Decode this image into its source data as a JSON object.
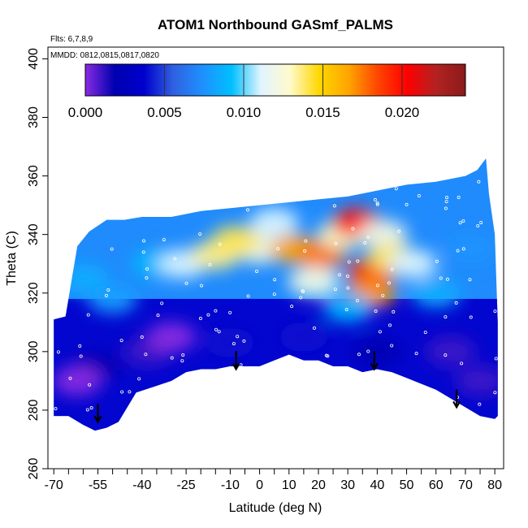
{
  "chart_data": {
    "type": "heatmap",
    "title": "ATOM1 Northbound GASmf_PALMS",
    "annotations": {
      "flights": "Flts: 6,7,8,9",
      "dates": "MMDD: 0812,0815,0817,0820"
    },
    "xlabel": "Latitude (deg N)",
    "ylabel": "Theta (C)",
    "xlim": [
      -72,
      83
    ],
    "ylim": [
      260,
      404
    ],
    "x_ticks_major": [
      -70,
      -55,
      -40,
      -25,
      -10,
      0,
      10,
      20,
      30,
      40,
      50,
      60,
      70,
      80
    ],
    "x_tick_labels": [
      "-70",
      "-55",
      "-40",
      "-25",
      "-10",
      "0",
      "10",
      "20",
      "30",
      "40",
      "50",
      "60",
      "70",
      "80"
    ],
    "x_ticks_minor": [
      -65,
      -60,
      -50,
      -45,
      -35,
      -30,
      -20,
      -15,
      -5,
      5,
      15,
      25,
      35,
      45,
      55,
      65,
      75
    ],
    "y_ticks": [
      260,
      280,
      300,
      320,
      340,
      360,
      380,
      400
    ],
    "y_tick_labels": [
      "260",
      "280",
      "300",
      "320",
      "340",
      "360",
      "380",
      "400"
    ],
    "colorbar": {
      "range": [
        0,
        0.024
      ],
      "ticks": [
        0,
        0.005,
        0.01,
        0.015,
        0.02
      ],
      "tick_labels": [
        "0.000",
        "0.005",
        "0.010",
        "0.015",
        "0.020"
      ],
      "colors": [
        "#8a2be2",
        "#0000b0",
        "#0000cd",
        "#3060e0",
        "#1e90ff",
        "#00bfff",
        "#e0f4ff",
        "#fffacd",
        "#ffd700",
        "#ffa500",
        "#ff4500",
        "#ff0000",
        "#b22222",
        "#8b1a1a"
      ]
    },
    "lower_boundary_theta": [
      [
        -70,
        278
      ],
      [
        -65,
        278
      ],
      [
        -60,
        275
      ],
      [
        -56,
        273
      ],
      [
        -52,
        274
      ],
      [
        -48,
        276
      ],
      [
        -42,
        286
      ],
      [
        -36,
        288
      ],
      [
        -30,
        290
      ],
      [
        -25,
        293
      ],
      [
        -20,
        294
      ],
      [
        -15,
        294
      ],
      [
        -10,
        295
      ],
      [
        -5,
        295
      ],
      [
        0,
        295
      ],
      [
        5,
        297
      ],
      [
        10,
        299
      ],
      [
        15,
        297
      ],
      [
        20,
        297
      ],
      [
        25,
        295
      ],
      [
        30,
        295
      ],
      [
        35,
        293
      ],
      [
        40,
        294
      ],
      [
        45,
        293
      ],
      [
        50,
        291
      ],
      [
        55,
        289
      ],
      [
        60,
        287
      ],
      [
        65,
        284
      ],
      [
        70,
        281
      ],
      [
        75,
        278
      ],
      [
        80,
        277
      ]
    ],
    "upper_boundary_theta": [
      [
        -70,
        311
      ],
      [
        -66,
        312
      ],
      [
        -62,
        336
      ],
      [
        -58,
        341
      ],
      [
        -52,
        345
      ],
      [
        -46,
        345
      ],
      [
        -40,
        346
      ],
      [
        -30,
        346
      ],
      [
        -20,
        348
      ],
      [
        -10,
        349
      ],
      [
        0,
        350
      ],
      [
        10,
        351
      ],
      [
        20,
        352
      ],
      [
        30,
        353
      ],
      [
        40,
        355
      ],
      [
        50,
        357
      ],
      [
        60,
        358
      ],
      [
        70,
        360
      ],
      [
        74,
        362
      ],
      [
        77,
        366
      ],
      [
        78,
        354
      ],
      [
        80,
        340
      ],
      [
        81,
        310
      ],
      [
        81,
        278
      ]
    ],
    "arrows": [
      {
        "lat": -55,
        "theta": 276
      },
      {
        "lat": -8,
        "theta": 294
      },
      {
        "lat": 39,
        "theta": 294
      },
      {
        "lat": 67,
        "theta": 281
      }
    ],
    "blobs": [
      {
        "lat": -55,
        "theta": 295,
        "value": 0.002
      },
      {
        "lat": -62,
        "theta": 290,
        "value": 0.0
      },
      {
        "lat": -38,
        "theta": 300,
        "value": 0.001
      },
      {
        "lat": -30,
        "theta": 305,
        "value": 0.0
      },
      {
        "lat": -10,
        "theta": 303,
        "value": 0.004
      },
      {
        "lat": 15,
        "theta": 305,
        "value": 0.004
      },
      {
        "lat": 40,
        "theta": 300,
        "value": 0.002
      },
      {
        "lat": 65,
        "theta": 300,
        "value": 0.001
      },
      {
        "lat": 75,
        "theta": 290,
        "value": 0.001
      },
      {
        "lat": -60,
        "theta": 325,
        "value": 0.0085
      },
      {
        "lat": -50,
        "theta": 318,
        "value": 0.008
      },
      {
        "lat": -35,
        "theta": 330,
        "value": 0.009
      },
      {
        "lat": 60,
        "theta": 320,
        "value": 0.0085
      },
      {
        "lat": 72,
        "theta": 335,
        "value": 0.0075
      },
      {
        "lat": 20,
        "theta": 324,
        "value": 0.0095
      },
      {
        "lat": -26,
        "theta": 330,
        "value": 0.011
      },
      {
        "lat": -15,
        "theta": 333,
        "value": 0.0135
      },
      {
        "lat": 0,
        "theta": 335,
        "value": 0.012
      },
      {
        "lat": 12,
        "theta": 335,
        "value": 0.0165
      },
      {
        "lat": 21,
        "theta": 333,
        "value": 0.0175
      },
      {
        "lat": 18,
        "theta": 324,
        "value": 0.012
      },
      {
        "lat": 28,
        "theta": 340,
        "value": 0.013
      },
      {
        "lat": 38,
        "theta": 327,
        "value": 0.019
      },
      {
        "lat": 38,
        "theta": 320,
        "value": 0.017
      },
      {
        "lat": 33,
        "theta": 344,
        "value": 0.02
      },
      {
        "lat": 42,
        "theta": 340,
        "value": 0.012
      },
      {
        "lat": 45,
        "theta": 332,
        "value": 0.014
      },
      {
        "lat": 52,
        "theta": 330,
        "value": 0.011
      },
      {
        "lat": -8,
        "theta": 338,
        "value": 0.014
      },
      {
        "lat": 5,
        "theta": 344,
        "value": 0.011
      },
      {
        "lat": 30,
        "theta": 315,
        "value": 0.009
      }
    ]
  }
}
